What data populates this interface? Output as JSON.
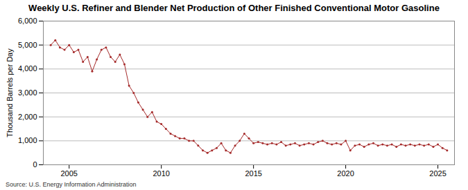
{
  "chart_data": {
    "type": "line",
    "title": "Weekly U.S. Refiner and Blender Net Production of Other Finished Conventional Motor Gasoline",
    "y_label": "Thousand Barrels per Day",
    "source": "Source: U.S. Energy Information Administration",
    "x": [
      2004.0,
      2004.25,
      2004.5,
      2004.75,
      2005.0,
      2005.25,
      2005.5,
      2005.75,
      2006.0,
      2006.25,
      2006.5,
      2006.75,
      2007.0,
      2007.25,
      2007.5,
      2007.75,
      2008.0,
      2008.25,
      2008.5,
      2008.75,
      2009.0,
      2009.25,
      2009.5,
      2009.75,
      2010.0,
      2010.25,
      2010.5,
      2010.75,
      2011.0,
      2011.25,
      2011.5,
      2011.75,
      2012.0,
      2012.25,
      2012.5,
      2012.75,
      2013.0,
      2013.25,
      2013.5,
      2013.75,
      2014.0,
      2014.25,
      2014.5,
      2014.75,
      2015.0,
      2015.25,
      2015.5,
      2015.75,
      2016.0,
      2016.25,
      2016.5,
      2016.75,
      2017.0,
      2017.25,
      2017.5,
      2017.75,
      2018.0,
      2018.25,
      2018.5,
      2018.75,
      2019.0,
      2019.25,
      2019.5,
      2019.75,
      2020.0,
      2020.25,
      2020.5,
      2020.75,
      2021.0,
      2021.25,
      2021.5,
      2021.75,
      2022.0,
      2022.25,
      2022.5,
      2022.75,
      2023.0,
      2023.25,
      2023.5,
      2023.75,
      2024.0,
      2024.25,
      2024.5,
      2024.75,
      2025.0,
      2025.25,
      2025.5
    ],
    "series": [
      {
        "name": "Other Finished Conventional Motor Gasoline",
        "color": "#a52a2a",
        "marker": "circle",
        "values": [
          5000,
          5200,
          4900,
          4800,
          5000,
          4700,
          4800,
          4300,
          4500,
          3900,
          4400,
          4800,
          4900,
          4500,
          4300,
          4600,
          4200,
          3300,
          3000,
          2600,
          2300,
          2000,
          2200,
          1800,
          1700,
          1500,
          1300,
          1200,
          1100,
          1100,
          1000,
          1000,
          800,
          600,
          500,
          600,
          700,
          900,
          600,
          500,
          800,
          1000,
          1300,
          1100,
          900,
          950,
          900,
          850,
          900,
          850,
          950,
          800,
          850,
          900,
          800,
          850,
          900,
          850,
          950,
          1000,
          900,
          850,
          900,
          850,
          1000,
          600,
          800,
          850,
          750,
          850,
          900,
          800,
          850,
          800,
          850,
          750,
          850,
          800,
          850,
          800,
          850,
          800,
          850,
          750,
          850,
          700,
          600
        ]
      }
    ],
    "xlim": [
      2003.6,
      2025.9
    ],
    "xticks": [
      2005,
      2010,
      2015,
      2020,
      2025
    ],
    "ylim": [
      0,
      6000
    ],
    "yticks": [
      0,
      {
        "value": 1000,
        "label": "1,000"
      },
      {
        "value": 2000,
        "label": "2,000"
      },
      {
        "value": 3000,
        "label": "3,000"
      },
      {
        "value": 4000,
        "label": "4,000"
      },
      {
        "value": 5000,
        "label": "5,000"
      },
      {
        "value": 6000,
        "label": "6,000"
      }
    ],
    "grid": true
  }
}
